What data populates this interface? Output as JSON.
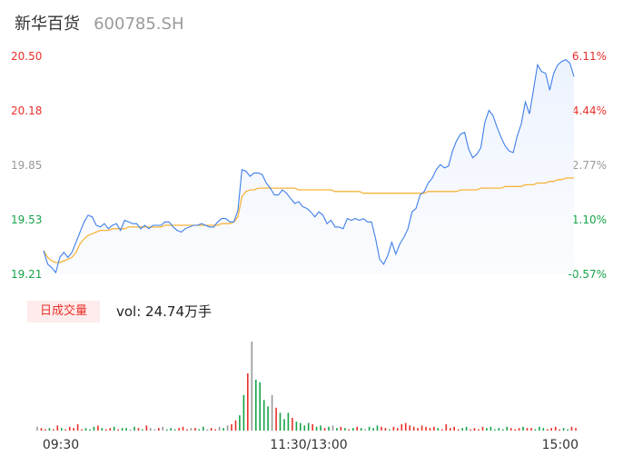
{
  "header": {
    "name": "新华百货",
    "code": "600785.SH"
  },
  "tab": {
    "label": "日成交量"
  },
  "volume": {
    "prefix": "vol: ",
    "value": "24.74万手"
  },
  "colors": {
    "up": "#e8302a",
    "down": "#16a34a",
    "neutral": "#999999",
    "price_line": "#3f7fe8",
    "avg_line": "#f6b43a"
  },
  "chart_data": {
    "type": "line",
    "price": {
      "ylim": [
        19.21,
        20.5
      ],
      "left_ticks": [
        "20.50",
        "20.18",
        "19.85",
        "19.53",
        "19.21"
      ],
      "right_ticks": [
        "6.11%",
        "4.44%",
        "2.77%",
        "1.10%",
        "-0.57%"
      ],
      "x_ticks": [
        "09:30",
        "11:30/13:00",
        "15:00"
      ],
      "series": [
        {
          "key": "price",
          "values": [
            19.35,
            19.27,
            19.25,
            19.22,
            19.31,
            19.34,
            19.31,
            19.34,
            19.4,
            19.46,
            19.52,
            19.56,
            19.55,
            19.5,
            19.49,
            19.51,
            19.48,
            19.5,
            19.51,
            19.47,
            19.53,
            19.52,
            19.51,
            19.51,
            19.48,
            19.5,
            19.48,
            19.5,
            19.5,
            19.5,
            19.52,
            19.52,
            19.49,
            19.47,
            19.46,
            19.48,
            19.49,
            19.5,
            19.5,
            19.51,
            19.5,
            19.49,
            19.49,
            19.52,
            19.54,
            19.54,
            19.52,
            19.52,
            19.59,
            19.83,
            19.82,
            19.79,
            19.81,
            19.81,
            19.8,
            19.75,
            19.72,
            19.68,
            19.68,
            19.71,
            19.69,
            19.66,
            19.63,
            19.64,
            19.61,
            19.6,
            19.58,
            19.55,
            19.58,
            19.56,
            19.51,
            19.53,
            19.49,
            19.49,
            19.48,
            19.54,
            19.53,
            19.54,
            19.53,
            19.54,
            19.52,
            19.52,
            19.42,
            19.3,
            19.27,
            19.32,
            19.4,
            19.33,
            19.39,
            19.43,
            19.48,
            19.58,
            19.6,
            19.68,
            19.7,
            19.75,
            19.78,
            19.83,
            19.86,
            19.84,
            19.85,
            19.94,
            20.0,
            20.04,
            20.05,
            19.95,
            19.9,
            19.92,
            19.96,
            20.11,
            20.18,
            20.15,
            20.08,
            20.02,
            19.97,
            19.94,
            19.93,
            20.03,
            20.1,
            20.23,
            20.16,
            20.3,
            20.45,
            20.41,
            20.4,
            20.3,
            20.4,
            20.45,
            20.47,
            20.48,
            20.46,
            20.38
          ]
        },
        {
          "key": "average",
          "values": [
            19.35,
            19.31,
            19.29,
            19.28,
            19.28,
            19.29,
            19.3,
            19.31,
            19.34,
            19.39,
            19.42,
            19.44,
            19.45,
            19.46,
            19.47,
            19.47,
            19.47,
            19.48,
            19.48,
            19.48,
            19.48,
            19.49,
            19.49,
            19.49,
            19.49,
            19.49,
            19.49,
            19.49,
            19.49,
            19.49,
            19.5,
            19.5,
            19.5,
            19.5,
            19.5,
            19.5,
            19.5,
            19.5,
            19.5,
            19.5,
            19.5,
            19.5,
            19.5,
            19.5,
            19.51,
            19.51,
            19.51,
            19.52,
            19.55,
            19.67,
            19.7,
            19.71,
            19.71,
            19.72,
            19.72,
            19.72,
            19.72,
            19.72,
            19.72,
            19.72,
            19.72,
            19.72,
            19.72,
            19.71,
            19.71,
            19.71,
            19.71,
            19.71,
            19.71,
            19.71,
            19.71,
            19.71,
            19.7,
            19.7,
            19.7,
            19.7,
            19.7,
            19.7,
            19.7,
            19.69,
            19.69,
            19.69,
            19.69,
            19.69,
            19.69,
            19.69,
            19.69,
            19.69,
            19.69,
            19.69,
            19.69,
            19.69,
            19.69,
            19.69,
            19.69,
            19.7,
            19.7,
            19.7,
            19.7,
            19.7,
            19.7,
            19.7,
            19.7,
            19.71,
            19.71,
            19.71,
            19.71,
            19.71,
            19.72,
            19.72,
            19.72,
            19.72,
            19.72,
            19.72,
            19.73,
            19.73,
            19.73,
            19.73,
            19.73,
            19.74,
            19.74,
            19.74,
            19.75,
            19.75,
            19.75,
            19.76,
            19.76,
            19.77,
            19.77,
            19.78,
            19.78,
            19.78
          ]
        }
      ]
    },
    "volume": {
      "values": [
        3,
        2,
        1,
        2,
        1,
        4,
        2,
        1,
        3,
        2,
        5,
        1,
        2,
        1,
        3,
        4,
        2,
        1,
        2,
        3,
        1,
        2,
        2,
        1,
        3,
        2,
        1,
        4,
        2,
        1,
        2,
        3,
        1,
        2,
        1,
        2,
        3,
        1,
        2,
        2,
        1,
        3,
        1,
        2,
        1,
        3,
        2,
        4,
        5,
        8,
        12,
        28,
        45,
        70,
        40,
        38,
        24,
        19,
        28,
        18,
        14,
        9,
        14,
        10,
        7,
        6,
        4,
        6,
        5,
        3,
        4,
        2,
        3,
        4,
        2,
        3,
        2,
        1,
        2,
        3,
        2,
        1,
        3,
        2,
        4,
        3,
        2,
        1,
        3,
        2,
        5,
        6,
        4,
        3,
        2,
        4,
        3,
        2,
        3,
        2,
        1,
        5,
        2,
        3,
        1,
        2,
        3,
        1,
        2,
        1,
        3,
        2,
        3,
        1,
        2,
        1,
        3,
        2,
        1,
        2,
        3,
        2,
        2,
        1,
        3,
        2,
        1,
        2,
        3,
        1,
        2,
        1,
        3,
        2
      ],
      "directions": [
        0,
        1,
        1,
        -1,
        1,
        1,
        -1,
        1,
        1,
        1,
        1,
        1,
        -1,
        -1,
        -1,
        1,
        -1,
        1,
        1,
        -1,
        1,
        -1,
        -1,
        0,
        -1,
        1,
        -1,
        1,
        0,
        0,
        1,
        0,
        -1,
        -1,
        -1,
        1,
        1,
        1,
        0,
        1,
        -1,
        -1,
        0,
        1,
        1,
        0,
        -1,
        0,
        1,
        1,
        -1,
        -1,
        1,
        0,
        -1,
        -1,
        -1,
        -1,
        0,
        1,
        -1,
        -1,
        -1,
        1,
        -1,
        -1,
        -1,
        -1,
        1,
        -1,
        -1,
        1,
        -1,
        0,
        -1,
        1,
        -1,
        1,
        -1,
        1,
        -1,
        0,
        -1,
        -1,
        -1,
        1,
        1,
        -1,
        1,
        1,
        1,
        1,
        1,
        1,
        1,
        1,
        1,
        1,
        1,
        -1,
        1,
        1,
        1,
        1,
        1,
        -1,
        -1,
        1,
        1,
        1,
        1,
        -1,
        -1,
        -1,
        -1,
        -1,
        -1,
        1,
        1,
        1,
        -1,
        1,
        1,
        -1,
        -1,
        -1,
        1,
        1,
        1,
        1,
        -1,
        -1,
        1,
        1,
        1,
        -1
      ]
    }
  }
}
